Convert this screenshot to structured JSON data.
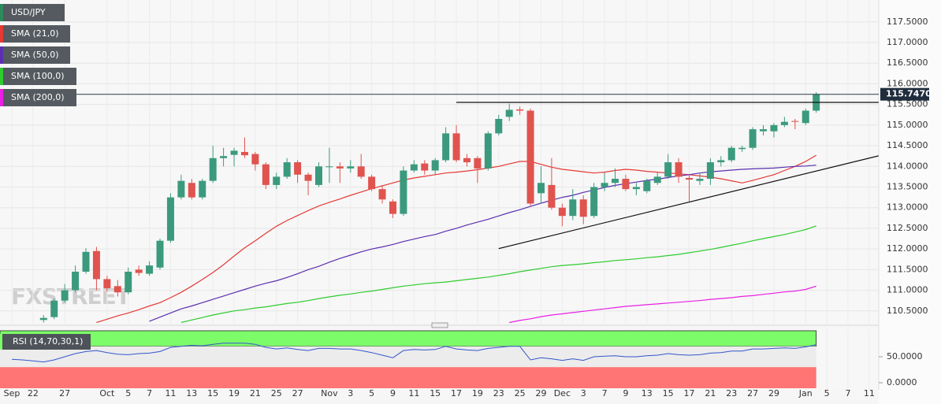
{
  "chart_data": {
    "type": "candlestick",
    "title": "USD/JPY",
    "watermark": "FXSTREET",
    "up_color": "#3b9a7d",
    "down_color": "#e0534f",
    "grid": true,
    "categories": [
      "Sep",
      null,
      "22",
      null,
      null,
      "27",
      null,
      null,
      null,
      "Oct",
      null,
      "5",
      null,
      "7",
      null,
      "11",
      null,
      "13",
      null,
      "15",
      null,
      "19",
      null,
      "21",
      null,
      "25",
      null,
      "27",
      null,
      null,
      "Nov",
      null,
      "3",
      null,
      "5",
      null,
      "9",
      null,
      "11",
      null,
      "15",
      null,
      "17",
      null,
      "19",
      null,
      "23",
      null,
      "25",
      null,
      "29",
      null,
      "Dec",
      null,
      "3",
      null,
      "7",
      null,
      "9",
      null,
      "13",
      null,
      "15",
      null,
      "17",
      null,
      "21",
      null,
      "23",
      null,
      "27",
      null,
      "29",
      null,
      null,
      "Jan",
      null,
      "5",
      null,
      "7",
      null,
      "11"
    ],
    "open": [
      null,
      null,
      null,
      110.28,
      110.35,
      110.75,
      111.0,
      111.45,
      111.95,
      111.27,
      111.1,
      110.95,
      111.5,
      111.4,
      111.55,
      112.2,
      113.25,
      113.6,
      113.25,
      113.65,
      114.2,
      114.28,
      114.35,
      114.3,
      114.05,
      113.55,
      113.75,
      114.1,
      113.8,
      113.55,
      113.98,
      114.0,
      113.95,
      114.0,
      113.75,
      113.45,
      113.15,
      112.85,
      113.9,
      114.07,
      113.9,
      114.15,
      114.8,
      114.2,
      114.2,
      113.95,
      114.8,
      115.2,
      115.38,
      115.35,
      113.35,
      113.55,
      113.0,
      112.8,
      113.2,
      112.8,
      113.5,
      113.6,
      113.7,
      113.45,
      113.4,
      113.6,
      113.75,
      114.1,
      113.72,
      113.65,
      113.7,
      114.1,
      114.15,
      114.42,
      114.45,
      114.85,
      114.85,
      115.0,
      115.1,
      115.05,
      115.35,
      null,
      null,
      null,
      null,
      null
    ],
    "high": [
      null,
      null,
      null,
      110.4,
      110.8,
      111.15,
      111.6,
      112.02,
      112.05,
      111.35,
      111.25,
      111.55,
      111.6,
      111.7,
      112.25,
      113.35,
      113.8,
      113.7,
      113.7,
      114.5,
      114.45,
      114.45,
      114.7,
      114.35,
      114.1,
      113.85,
      114.2,
      114.15,
      113.85,
      114.1,
      114.45,
      114.1,
      114.15,
      114.3,
      113.8,
      113.55,
      113.2,
      114.0,
      114.15,
      114.15,
      114.2,
      114.95,
      115.0,
      114.3,
      114.25,
      114.85,
      115.25,
      115.52,
      115.45,
      115.4,
      114.0,
      114.2,
      113.1,
      113.45,
      113.3,
      113.6,
      113.85,
      113.95,
      113.8,
      113.6,
      113.7,
      113.85,
      114.3,
      114.2,
      113.8,
      113.85,
      114.2,
      114.25,
      114.5,
      114.5,
      114.95,
      115.0,
      115.05,
      115.2,
      115.15,
      115.4,
      115.8,
      null,
      null,
      null,
      null,
      null
    ],
    "low": [
      null,
      null,
      null,
      110.22,
      110.3,
      110.7,
      110.95,
      111.4,
      111.0,
      110.97,
      110.85,
      110.9,
      111.35,
      111.35,
      111.5,
      112.15,
      113.2,
      113.2,
      113.2,
      113.6,
      114.0,
      114.0,
      114.2,
      113.9,
      113.45,
      113.45,
      113.7,
      113.6,
      113.3,
      113.5,
      113.6,
      113.6,
      113.85,
      113.7,
      113.4,
      113.1,
      112.75,
      112.8,
      113.85,
      113.8,
      113.8,
      114.1,
      114.1,
      114.0,
      113.6,
      113.9,
      114.75,
      115.1,
      115.25,
      113.05,
      113.1,
      112.95,
      112.55,
      112.7,
      112.6,
      112.75,
      113.4,
      113.5,
      113.4,
      113.3,
      113.35,
      113.55,
      113.7,
      113.6,
      113.15,
      113.55,
      113.55,
      114.0,
      114.1,
      114.35,
      114.4,
      114.75,
      114.7,
      114.95,
      114.9,
      115.0,
      115.3,
      null,
      null,
      null,
      null,
      null
    ],
    "close": [
      null,
      null,
      null,
      110.33,
      110.75,
      111.0,
      111.45,
      111.93,
      111.27,
      111.05,
      110.95,
      111.45,
      111.42,
      111.6,
      112.2,
      113.25,
      113.65,
      113.25,
      113.65,
      114.2,
      114.25,
      114.38,
      114.27,
      114.05,
      113.55,
      113.75,
      114.1,
      113.8,
      113.65,
      114.0,
      114.0,
      113.95,
      114.0,
      113.75,
      113.45,
      113.2,
      112.85,
      113.9,
      114.05,
      113.9,
      114.15,
      114.8,
      114.15,
      114.1,
      113.95,
      114.8,
      115.15,
      115.37,
      115.35,
      113.1,
      113.6,
      113.0,
      112.8,
      113.2,
      112.78,
      113.5,
      113.6,
      113.7,
      113.45,
      113.5,
      113.65,
      113.75,
      114.1,
      113.75,
      113.68,
      113.7,
      114.1,
      114.15,
      114.45,
      114.45,
      114.9,
      114.9,
      115.0,
      115.08,
      115.08,
      115.35,
      115.747,
      null,
      null,
      null,
      null,
      null
    ],
    "series": [
      {
        "name": "SMA (21,0)",
        "color": "#e53935",
        "values": [
          null,
          null,
          null,
          null,
          null,
          null,
          null,
          null,
          110.22,
          110.3,
          110.38,
          110.45,
          110.53,
          110.62,
          110.7,
          110.82,
          110.95,
          111.1,
          111.26,
          111.43,
          111.62,
          111.83,
          112.03,
          112.2,
          112.38,
          112.55,
          112.69,
          112.81,
          112.93,
          113.04,
          113.13,
          113.21,
          113.3,
          113.38,
          113.46,
          113.53,
          113.6,
          113.67,
          113.72,
          113.76,
          113.8,
          113.84,
          113.86,
          113.89,
          113.92,
          113.96,
          114.0,
          114.06,
          114.12,
          114.12,
          114.05,
          113.98,
          113.93,
          113.9,
          113.87,
          113.84,
          113.86,
          113.9,
          113.93,
          113.91,
          113.88,
          113.86,
          113.84,
          113.82,
          113.8,
          113.77,
          113.74,
          113.7,
          113.65,
          113.6,
          113.66,
          113.73,
          113.8,
          113.9,
          114.0,
          114.12,
          114.27,
          null,
          null,
          null,
          null,
          null
        ]
      },
      {
        "name": "SMA (50,0)",
        "color": "#5b2fb0",
        "values": [
          null,
          null,
          null,
          null,
          null,
          null,
          null,
          null,
          null,
          null,
          null,
          null,
          null,
          110.25,
          110.35,
          110.45,
          110.55,
          110.62,
          110.7,
          110.78,
          110.86,
          110.94,
          111.02,
          111.1,
          111.17,
          111.23,
          111.31,
          111.4,
          111.5,
          111.58,
          111.68,
          111.77,
          111.85,
          111.93,
          112.0,
          112.05,
          112.11,
          112.18,
          112.24,
          112.3,
          112.35,
          112.43,
          112.5,
          112.58,
          112.65,
          112.72,
          112.8,
          112.88,
          112.95,
          113.03,
          113.11,
          113.18,
          113.25,
          113.3,
          113.37,
          113.43,
          113.49,
          113.54,
          113.58,
          113.62,
          113.66,
          113.69,
          113.73,
          113.77,
          113.8,
          113.84,
          113.87,
          113.89,
          113.91,
          113.93,
          113.94,
          113.95,
          113.96,
          113.98,
          114.0,
          114.01,
          114.03,
          null,
          null,
          null,
          null,
          null
        ]
      },
      {
        "name": "SMA (100,0)",
        "color": "#2ecc2e",
        "values": [
          null,
          null,
          null,
          null,
          null,
          null,
          null,
          null,
          null,
          null,
          null,
          null,
          null,
          null,
          null,
          null,
          110.22,
          110.28,
          110.34,
          110.4,
          110.45,
          110.5,
          110.53,
          110.57,
          110.6,
          110.64,
          110.68,
          110.71,
          110.75,
          110.8,
          110.84,
          110.88,
          110.91,
          110.95,
          110.98,
          111.02,
          111.06,
          111.1,
          111.13,
          111.16,
          111.18,
          111.2,
          111.23,
          111.26,
          111.29,
          111.32,
          111.36,
          111.4,
          111.45,
          111.49,
          111.53,
          111.57,
          111.6,
          111.62,
          111.64,
          111.67,
          111.69,
          111.72,
          111.74,
          111.76,
          111.79,
          111.81,
          111.84,
          111.87,
          111.91,
          111.95,
          111.99,
          112.04,
          112.09,
          112.14,
          112.2,
          112.25,
          112.3,
          112.35,
          112.41,
          112.47,
          112.56,
          null,
          null,
          null,
          null,
          null
        ]
      },
      {
        "name": "SMA (200,0)",
        "color": "#e91ee6",
        "values": [
          null,
          null,
          null,
          null,
          null,
          null,
          null,
          null,
          null,
          null,
          null,
          null,
          null,
          null,
          null,
          null,
          null,
          null,
          null,
          null,
          null,
          null,
          null,
          null,
          null,
          null,
          null,
          null,
          null,
          null,
          null,
          null,
          null,
          null,
          null,
          null,
          null,
          null,
          null,
          null,
          null,
          null,
          null,
          null,
          null,
          null,
          null,
          110.22,
          110.27,
          110.31,
          110.36,
          110.4,
          110.43,
          110.46,
          110.49,
          110.52,
          110.55,
          110.58,
          110.61,
          110.63,
          110.65,
          110.67,
          110.69,
          110.71,
          110.73,
          110.75,
          110.78,
          110.8,
          110.82,
          110.85,
          110.87,
          110.9,
          110.93,
          110.96,
          110.98,
          111.02,
          111.1,
          null,
          null,
          null,
          null,
          null
        ]
      }
    ],
    "trendlines": [
      {
        "x": [
          42,
          81
        ],
        "y": [
          115.55,
          115.55
        ],
        "color": "#111111"
      },
      {
        "x": [
          46,
          81
        ],
        "y": [
          112.01,
          114.2
        ],
        "color": "#111111"
      }
    ],
    "last_price": {
      "value": 115.747,
      "label": "115.7470"
    },
    "ylim": [
      110.21,
      118.03
    ],
    "yticks": [
      {
        "value": 110.5,
        "label": "110.5000"
      },
      {
        "value": 111,
        "label": "111.0000"
      },
      {
        "value": 111.5,
        "label": "111.5000"
      },
      {
        "value": 112,
        "label": "112.0000"
      },
      {
        "value": 112.5,
        "label": "112.5000"
      },
      {
        "value": 113,
        "label": "113.0000"
      },
      {
        "value": 113.5,
        "label": "113.5000"
      },
      {
        "value": 114,
        "label": "114.0000"
      },
      {
        "value": 114.5,
        "label": "114.5000"
      },
      {
        "value": 115,
        "label": "115.0000"
      },
      {
        "value": 115.5,
        "label": "115.5000"
      },
      {
        "value": 116,
        "label": "116.0000"
      },
      {
        "value": 116.5,
        "label": "116.5000"
      },
      {
        "value": 117,
        "label": "117.0000"
      },
      {
        "value": 117.5,
        "label": "117.5000"
      }
    ],
    "rsi": {
      "title": "RSI (14,70,30,1)",
      "color": "#3355cc",
      "overbought": 70,
      "oversold": 30,
      "overbought_color": "#7dfc6a",
      "oversold_color": "#ff7474",
      "values": [
        45,
        44,
        42,
        40,
        44,
        50,
        56,
        60,
        62,
        58,
        55,
        54,
        56,
        57,
        60,
        68,
        70,
        72,
        71,
        74,
        76,
        76,
        76,
        74,
        68,
        65,
        67,
        64,
        62,
        66,
        66,
        65,
        65,
        62,
        58,
        53,
        48,
        62,
        64,
        63,
        64,
        70,
        65,
        63,
        62,
        66,
        68,
        70,
        70,
        44,
        48,
        46,
        43,
        46,
        43,
        50,
        51,
        52,
        50,
        50,
        52,
        53,
        56,
        54,
        53,
        54,
        57,
        58,
        61,
        61,
        65,
        65,
        66,
        67,
        66,
        69,
        73,
        null,
        null,
        null,
        null,
        null
      ],
      "ylim": [
        -13.6,
        103
      ],
      "yticks": [
        {
          "value": 0,
          "label": "0.0000"
        },
        {
          "value": 50,
          "label": "50.0000"
        }
      ]
    }
  }
}
